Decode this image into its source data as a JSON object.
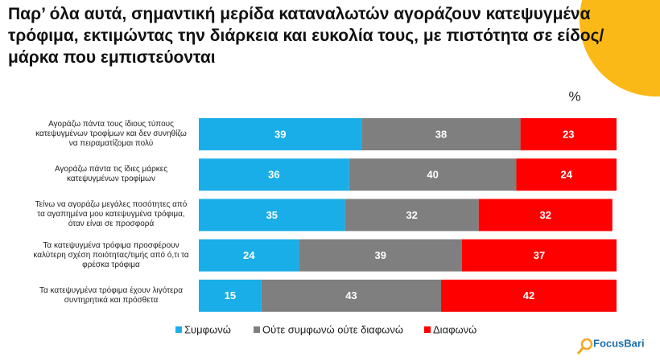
{
  "chart_data": {
    "type": "stacked-bar-horizontal",
    "title": "Παρ’ όλα αυτά, σημαντική μερίδα καταναλωτών αγοράζουν κατεψυγμένα τρόφιμα, εκτιμώντας την διάρκεια και ευκολία τους, με πιστότητα σε είδος/ μάρκα που εμπιστεύονται",
    "unit_label": "%",
    "categories": [
      "Αγοράζω πάντα τους ίδιους τύπους κατεψυγμένων τροφίμων και δεν συνηθίζω να πειραματίζομαι πολύ",
      "Αγοράζω πάντα τις ίδιες μάρκες κατεψυγμένων τροφίμων",
      "Τείνω να αγοράζω μεγάλες ποσότητες από τα αγαπημένα μου κατεψυγμένα τρόφιμα, όταν είναι σε προσφορά",
      "Τα κατεψυγμένα τρόφιμα προσφέρουν καλύτερη σχέση ποιότητας/τιμής από ό,τι τα φρέσκα τρόφιμα",
      "Τα κατεψυγμένα τρόφιμα έχουν λιγότερα συντηρητικά και πρόσθετα"
    ],
    "series": [
      {
        "name": "Συμφωνώ",
        "color": "#1aaee8",
        "values": [
          39,
          36,
          35,
          24,
          15
        ]
      },
      {
        "name": "Ούτε συμφωνώ ούτε διαφωνώ",
        "color": "#7f7f7f",
        "values": [
          38,
          40,
          32,
          39,
          43
        ]
      },
      {
        "name": "Διαφωνώ",
        "color": "#ff0000",
        "values": [
          23,
          24,
          32,
          37,
          42
        ]
      }
    ],
    "xlim": [
      0,
      100
    ],
    "logo": "FocusBari"
  }
}
